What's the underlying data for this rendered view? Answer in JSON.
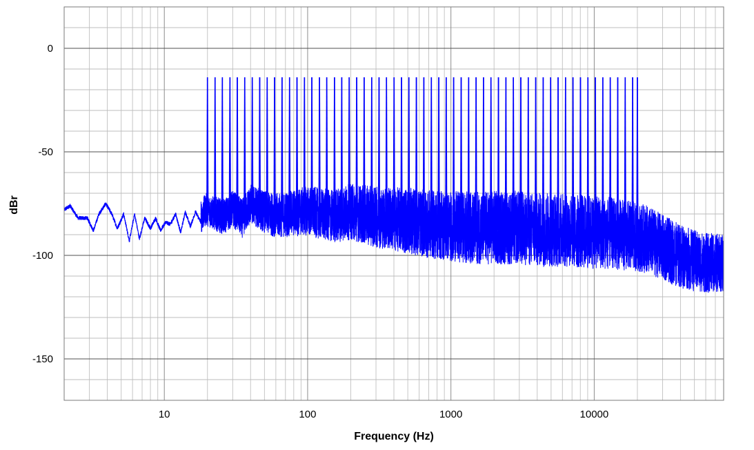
{
  "chart_data": {
    "type": "line",
    "xlabel": "Frequency (Hz)",
    "ylabel": "dBr",
    "x_scale": "log",
    "xlim": [
      2,
      80000
    ],
    "ylim": [
      -170,
      20
    ],
    "x_tick_labels": [
      {
        "value": 10,
        "label": "10"
      },
      {
        "value": 100,
        "label": "100"
      },
      {
        "value": 1000,
        "label": "1000"
      },
      {
        "value": 10000,
        "label": "10000"
      }
    ],
    "y_tick_labels": [
      {
        "value": 0,
        "label": "0"
      },
      {
        "value": -50,
        "label": "-50"
      },
      {
        "value": -100,
        "label": "-100"
      },
      {
        "value": -150,
        "label": "-150"
      }
    ],
    "grid": true,
    "series": [
      {
        "color": "#0000ff",
        "description_free": true,
        "tone_frequencies_hz": [
          20,
          22.6,
          25.4,
          28.7,
          32.3,
          36.4,
          41.1,
          46.3,
          52.2,
          58.8,
          66.3,
          74.8,
          84.3,
          95.0,
          107,
          121,
          136,
          154,
          173,
          195,
          220,
          248,
          280,
          315,
          355,
          401,
          452,
          509,
          574,
          647,
          730,
          823,
          927,
          1045,
          1179,
          1329,
          1498,
          1688,
          1903,
          2146,
          2419,
          2727,
          3074,
          3465,
          3906,
          4403,
          4964,
          5595,
          6308,
          7110,
          8015,
          9035,
          10185,
          11481,
          12942,
          14590,
          16446,
          18540,
          20000
        ],
        "tone_level_db": -14,
        "noise_floor_points": [
          [
            2.0,
            -78
          ],
          [
            2.2,
            -76
          ],
          [
            2.5,
            -82
          ],
          [
            2.9,
            -82
          ],
          [
            3.2,
            -88
          ],
          [
            3.5,
            -80
          ],
          [
            3.9,
            -75
          ],
          [
            4.3,
            -80
          ],
          [
            4.7,
            -87
          ],
          [
            5.2,
            -80
          ],
          [
            5.7,
            -93
          ],
          [
            6.2,
            -80
          ],
          [
            6.7,
            -92
          ],
          [
            7.3,
            -82
          ],
          [
            8.0,
            -87
          ],
          [
            8.7,
            -82
          ],
          [
            9.4,
            -88
          ],
          [
            10.2,
            -84
          ],
          [
            11.0,
            -85
          ],
          [
            12.0,
            -80
          ],
          [
            13.0,
            -89
          ],
          [
            14.0,
            -79
          ],
          [
            15.2,
            -86
          ],
          [
            16.5,
            -79
          ],
          [
            18.0,
            -84
          ],
          [
            19.5,
            -80
          ],
          [
            22,
            -82
          ],
          [
            26,
            -84
          ],
          [
            30,
            -80
          ],
          [
            35,
            -85
          ],
          [
            40,
            -78
          ],
          [
            50,
            -82
          ],
          [
            60,
            -84
          ],
          [
            80,
            -83
          ],
          [
            100,
            -82
          ],
          [
            150,
            -85
          ],
          [
            200,
            -83
          ],
          [
            300,
            -86
          ],
          [
            500,
            -88
          ],
          [
            700,
            -90
          ],
          [
            1000,
            -91
          ],
          [
            1500,
            -92
          ],
          [
            2000,
            -92
          ],
          [
            3000,
            -92
          ],
          [
            4000,
            -93
          ],
          [
            6000,
            -93
          ],
          [
            8000,
            -94
          ],
          [
            10000,
            -94
          ],
          [
            15000,
            -95
          ],
          [
            20000,
            -96
          ],
          [
            25000,
            -98
          ],
          [
            30000,
            -101
          ],
          [
            40000,
            -105
          ],
          [
            50000,
            -107
          ],
          [
            60000,
            -108
          ],
          [
            70000,
            -108
          ],
          [
            80000,
            -108
          ]
        ],
        "noise_spread_db": [
          [
            2,
            6
          ],
          [
            20,
            8
          ],
          [
            100,
            12
          ],
          [
            500,
            16
          ],
          [
            2000,
            18
          ],
          [
            10000,
            18
          ],
          [
            30000,
            16
          ],
          [
            80000,
            14
          ]
        ]
      }
    ]
  }
}
